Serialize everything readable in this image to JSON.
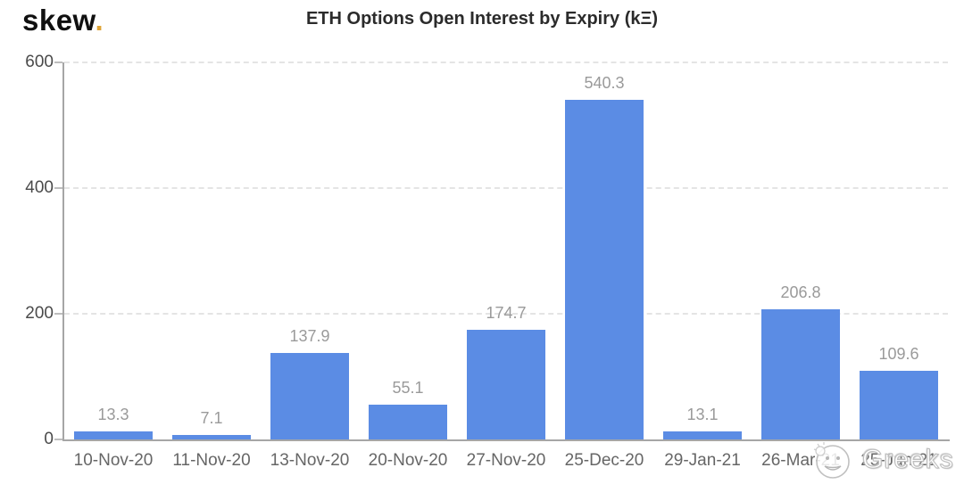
{
  "header": {
    "logo_text": "skew",
    "logo_dot": ".",
    "title": "ETH Options Open Interest by Expiry (kΞ)"
  },
  "chart_data": {
    "type": "bar",
    "title": "ETH Options Open Interest by Expiry (kΞ)",
    "categories": [
      "10-Nov-20",
      "11-Nov-20",
      "13-Nov-20",
      "20-Nov-20",
      "27-Nov-20",
      "25-Dec-20",
      "29-Jan-21",
      "26-Mar-21",
      "25-Jun-21"
    ],
    "values": [
      13.3,
      7.1,
      137.9,
      55.1,
      174.7,
      540.3,
      13.1,
      206.8,
      109.6
    ],
    "xlabel": "",
    "ylabel": "",
    "ylim": [
      0,
      600
    ],
    "yticks": [
      0,
      200,
      400,
      600
    ],
    "grid": "horizontal-dashed",
    "legend": "none",
    "bar_color": "#5b8ce4",
    "value_labels_shown": true
  },
  "watermark": {
    "icon": "smiley-face-icon",
    "text": "Greeks"
  },
  "colors": {
    "bar": "#5b8ce4",
    "axis": "#a6a6a6",
    "gridline": "#e4e4e4",
    "value_label": "#9a9a9a",
    "tick_label": "#4a4a4a",
    "x_label": "#666666",
    "title": "#2b2b2b",
    "logo_dot": "#dfa437"
  }
}
